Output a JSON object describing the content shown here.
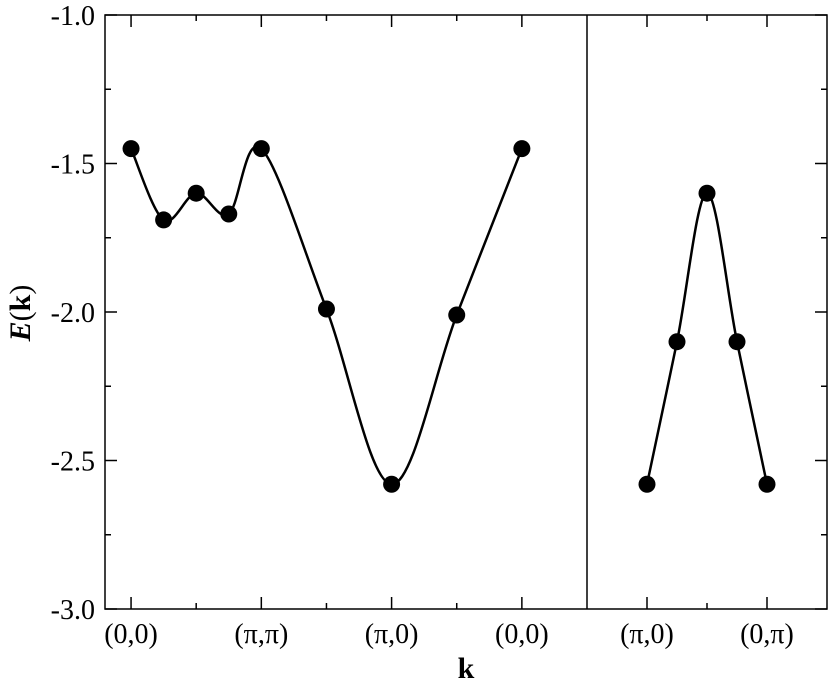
{
  "chart_data": {
    "type": "line",
    "title": "",
    "xlabel": "k",
    "ylabel_italic": "E",
    "ylabel_paren_open": "(",
    "ylabel_bold": "k",
    "ylabel_paren_close": ")",
    "ylim": [
      -3.0,
      -1.0
    ],
    "y_ticks": [
      -3.0,
      -2.5,
      -2.0,
      -1.5,
      -1.0
    ],
    "y_tick_labels": [
      "-3.0",
      "-2.5",
      "-2.0",
      "-1.5",
      "-1.0"
    ],
    "grid": false,
    "panels": [
      {
        "xlim": [
          -0.2,
          3.5
        ],
        "x_ticks": [
          0,
          1,
          2,
          3
        ],
        "x_tick_labels": [
          "(0,0)",
          "(π,π)",
          "(π,0)",
          "(0,0)"
        ],
        "points": [
          [
            0.0,
            -1.45
          ],
          [
            0.25,
            -1.69
          ],
          [
            0.5,
            -1.6
          ],
          [
            0.75,
            -1.67
          ],
          [
            1.0,
            -1.45
          ],
          [
            1.5,
            -1.99
          ],
          [
            2.0,
            -2.58
          ],
          [
            2.5,
            -2.01
          ],
          [
            3.0,
            -1.45
          ]
        ]
      },
      {
        "xlim": [
          -0.5,
          1.5
        ],
        "x_ticks": [
          0,
          1
        ],
        "x_tick_labels": [
          "(π,0)",
          "(0,π)"
        ],
        "points": [
          [
            0.0,
            -2.58
          ],
          [
            0.25,
            -2.1
          ],
          [
            0.5,
            -1.6
          ],
          [
            0.75,
            -2.1
          ],
          [
            1.0,
            -2.58
          ]
        ]
      }
    ]
  }
}
